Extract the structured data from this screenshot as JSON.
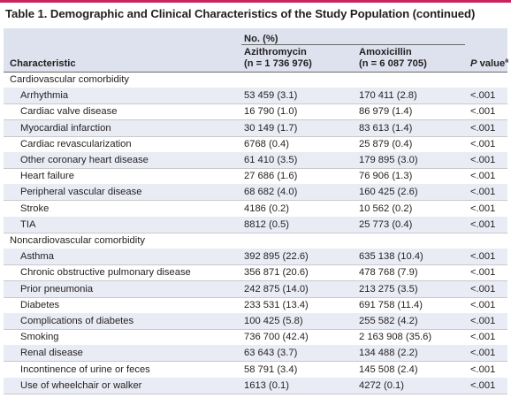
{
  "title": "Table 1. Demographic and Clinical Characteristics of the Study Population (continued)",
  "header": {
    "group_label": "No. (%)",
    "characteristic": "Characteristic",
    "azithro_name": "Azithromycin",
    "azithro_n": "(n = 1 736 976)",
    "amox_name": "Amoxicillin",
    "amox_n": "(n = 6 087 705)",
    "pvalue_p": "P",
    "pvalue_rest": " value",
    "pvalue_sup": "a"
  },
  "rows": [
    {
      "type": "section",
      "label": "Cardiovascular comorbidity"
    },
    {
      "type": "data",
      "label": "Arrhythmia",
      "azithro": "53 459 (3.1)",
      "amox": "170 411 (2.8)",
      "p": "<.001"
    },
    {
      "type": "data",
      "label": "Cardiac valve disease",
      "azithro": "16 790 (1.0)",
      "amox": "86 979 (1.4)",
      "p": "<.001"
    },
    {
      "type": "data",
      "label": "Myocardial infarction",
      "azithro": "30 149 (1.7)",
      "amox": "83 613 (1.4)",
      "p": "<.001"
    },
    {
      "type": "data",
      "label": "Cardiac revascularization",
      "azithro": "6768 (0.4)",
      "amox": "25 879 (0.4)",
      "p": "<.001"
    },
    {
      "type": "data",
      "label": "Other coronary heart disease",
      "azithro": "61 410 (3.5)",
      "amox": "179 895 (3.0)",
      "p": "<.001"
    },
    {
      "type": "data",
      "label": "Heart failure",
      "azithro": "27 686 (1.6)",
      "amox": "76 906 (1.3)",
      "p": "<.001"
    },
    {
      "type": "data",
      "label": "Peripheral vascular disease",
      "azithro": "68 682 (4.0)",
      "amox": "160 425 (2.6)",
      "p": "<.001"
    },
    {
      "type": "data",
      "label": "Stroke",
      "azithro": "4186 (0.2)",
      "amox": "10 562 (0.2)",
      "p": "<.001"
    },
    {
      "type": "data",
      "label": "TIA",
      "azithro": "8812 (0.5)",
      "amox": "25 773 (0.4)",
      "p": "<.001"
    },
    {
      "type": "section",
      "label": "Noncardiovascular comorbidity"
    },
    {
      "type": "data",
      "label": "Asthma",
      "azithro": "392 895 (22.6)",
      "amox": "635 138 (10.4)",
      "p": "<.001"
    },
    {
      "type": "data",
      "label": "Chronic obstructive pulmonary disease",
      "azithro": "356 871 (20.6)",
      "amox": "478 768 (7.9)",
      "p": "<.001"
    },
    {
      "type": "data",
      "label": "Prior pneumonia",
      "azithro": "242 875 (14.0)",
      "amox": "213 275 (3.5)",
      "p": "<.001"
    },
    {
      "type": "data",
      "label": "Diabetes",
      "azithro": "233 531 (13.4)",
      "amox": "691 758 (11.4)",
      "p": "<.001"
    },
    {
      "type": "data",
      "label": "Complications of diabetes",
      "azithro": "100 425 (5.8)",
      "amox": "255 582 (4.2)",
      "p": "<.001"
    },
    {
      "type": "data",
      "label": "Smoking",
      "azithro": "736 700 (42.4)",
      "amox": "2 163 908 (35.6)",
      "p": "<.001"
    },
    {
      "type": "data",
      "label": "Renal disease",
      "azithro": "63 643 (3.7)",
      "amox": "134 488 (2.2)",
      "p": "<.001"
    },
    {
      "type": "data",
      "label": "Incontinence of urine or feces",
      "azithro": "58 791 (3.4)",
      "amox": "145 508 (2.4)",
      "p": "<.001"
    },
    {
      "type": "data",
      "label": "Use of wheelchair or walker",
      "azithro": "1613 (0.1)",
      "amox": "4272 (0.1)",
      "p": "<.001"
    }
  ]
}
